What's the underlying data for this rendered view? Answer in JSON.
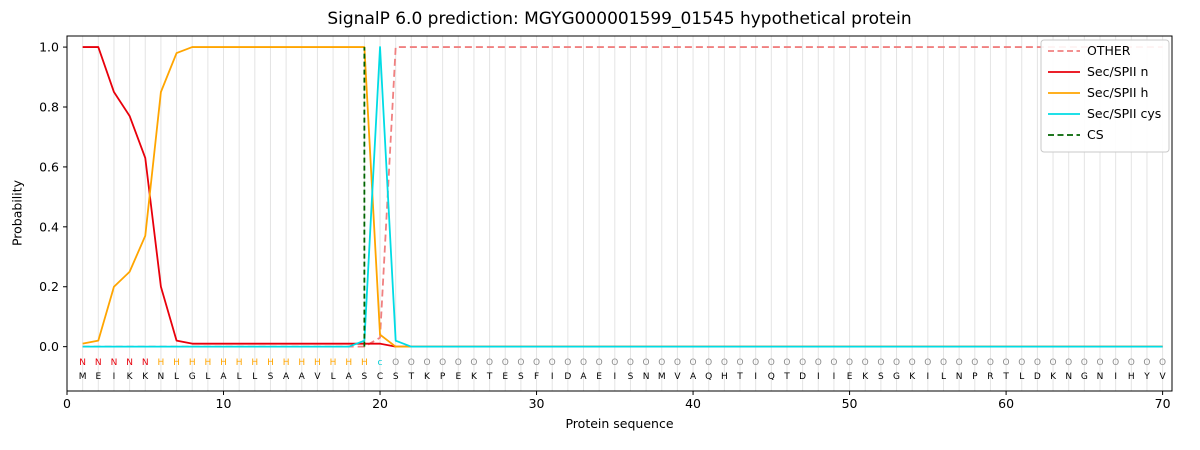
{
  "chart_data": {
    "type": "line",
    "title": "SignalP 6.0 prediction: MGYG000001599_01545 hypothetical protein",
    "xlabel": "Protein sequence",
    "ylabel": "Probability",
    "xlim": [
      0,
      70.6
    ],
    "ylim": [
      -0.148,
      1.037
    ],
    "xticks": [
      0,
      10,
      20,
      30,
      40,
      50,
      60,
      70
    ],
    "yticks": [
      0,
      0.2,
      0.4,
      0.6,
      0.8,
      1.0
    ],
    "grid": "vertical line per residue",
    "legend_position": "upper right",
    "x_start": 1,
    "sequence": "MEIKKNLGLALLSAAVLASCSTKPEKTESFIDAEISNMVAQHTIQTDIIEKSGKILNPRTLDKNGNIHYV",
    "region_labels": "NNNNNHHHHHHHHHHHHHHcOOOOOOOOOOOOOOOOOOOOOOOOOOOOOOOOOOOOOOOOOOOOOOOOOO",
    "cs_position": 19,
    "cs_label": "CS",
    "colors": {
      "grid": "#e4e4e4",
      "frame": "#000000",
      "cs": "#006400",
      "tick_text": "#000000",
      "residue_text": "#000000"
    },
    "label_colors": {
      "N": "#e8000b",
      "H": "#ffa500",
      "c": "#00cdd6",
      "O": "#8f8f8f"
    },
    "series": [
      {
        "id": "other",
        "name": "OTHER",
        "color": "#f08080",
        "dash": true,
        "values": [
          0,
          0,
          0,
          0,
          0,
          0,
          0,
          0,
          0,
          0,
          0,
          0,
          0,
          0,
          0,
          0,
          0,
          0,
          0,
          0.03,
          1,
          1,
          1,
          1,
          1,
          1,
          1,
          1,
          1,
          1,
          1,
          1,
          1,
          1,
          1,
          1,
          1,
          1,
          1,
          1,
          1,
          1,
          1,
          1,
          1,
          1,
          1,
          1,
          1,
          1,
          1,
          1,
          1,
          1,
          1,
          1,
          1,
          1,
          1,
          1,
          1,
          1,
          1,
          1,
          1,
          1,
          1,
          1,
          1,
          1
        ]
      },
      {
        "id": "sec-spii-n",
        "name": "Sec/SPII n",
        "color": "#e8000b",
        "dash": false,
        "values": [
          1,
          1,
          0.85,
          0.77,
          0.63,
          0.2,
          0.02,
          0.01,
          0.01,
          0.01,
          0.01,
          0.01,
          0.01,
          0.01,
          0.01,
          0.01,
          0.01,
          0.01,
          0.01,
          0.01,
          0,
          0,
          0,
          0,
          0,
          0,
          0,
          0,
          0,
          0,
          0,
          0,
          0,
          0,
          0,
          0,
          0,
          0,
          0,
          0,
          0,
          0,
          0,
          0,
          0,
          0,
          0,
          0,
          0,
          0,
          0,
          0,
          0,
          0,
          0,
          0,
          0,
          0,
          0,
          0,
          0,
          0,
          0,
          0,
          0,
          0,
          0,
          0,
          0,
          0
        ]
      },
      {
        "id": "sec-spii-h",
        "name": "Sec/SPII h",
        "color": "#ffa500",
        "dash": false,
        "values": [
          0.01,
          0.02,
          0.2,
          0.25,
          0.37,
          0.85,
          0.98,
          1,
          1,
          1,
          1,
          1,
          1,
          1,
          1,
          1,
          1,
          1,
          1,
          0.04,
          0,
          0,
          0,
          0,
          0,
          0,
          0,
          0,
          0,
          0,
          0,
          0,
          0,
          0,
          0,
          0,
          0,
          0,
          0,
          0,
          0,
          0,
          0,
          0,
          0,
          0,
          0,
          0,
          0,
          0,
          0,
          0,
          0,
          0,
          0,
          0,
          0,
          0,
          0,
          0,
          0,
          0,
          0,
          0,
          0,
          0,
          0,
          0,
          0,
          0
        ]
      },
      {
        "id": "sec-spii-cys",
        "name": "Sec/SPII cys",
        "color": "#00dce5",
        "dash": false,
        "values": [
          0,
          0,
          0,
          0,
          0,
          0,
          0,
          0,
          0,
          0,
          0,
          0,
          0,
          0,
          0,
          0,
          0,
          0,
          0.02,
          1,
          0.02,
          0,
          0,
          0,
          0,
          0,
          0,
          0,
          0,
          0,
          0,
          0,
          0,
          0,
          0,
          0,
          0,
          0,
          0,
          0,
          0,
          0,
          0,
          0,
          0,
          0,
          0,
          0,
          0,
          0,
          0,
          0,
          0,
          0,
          0,
          0,
          0,
          0,
          0,
          0,
          0,
          0,
          0,
          0,
          0,
          0,
          0,
          0,
          0,
          0
        ]
      }
    ]
  }
}
